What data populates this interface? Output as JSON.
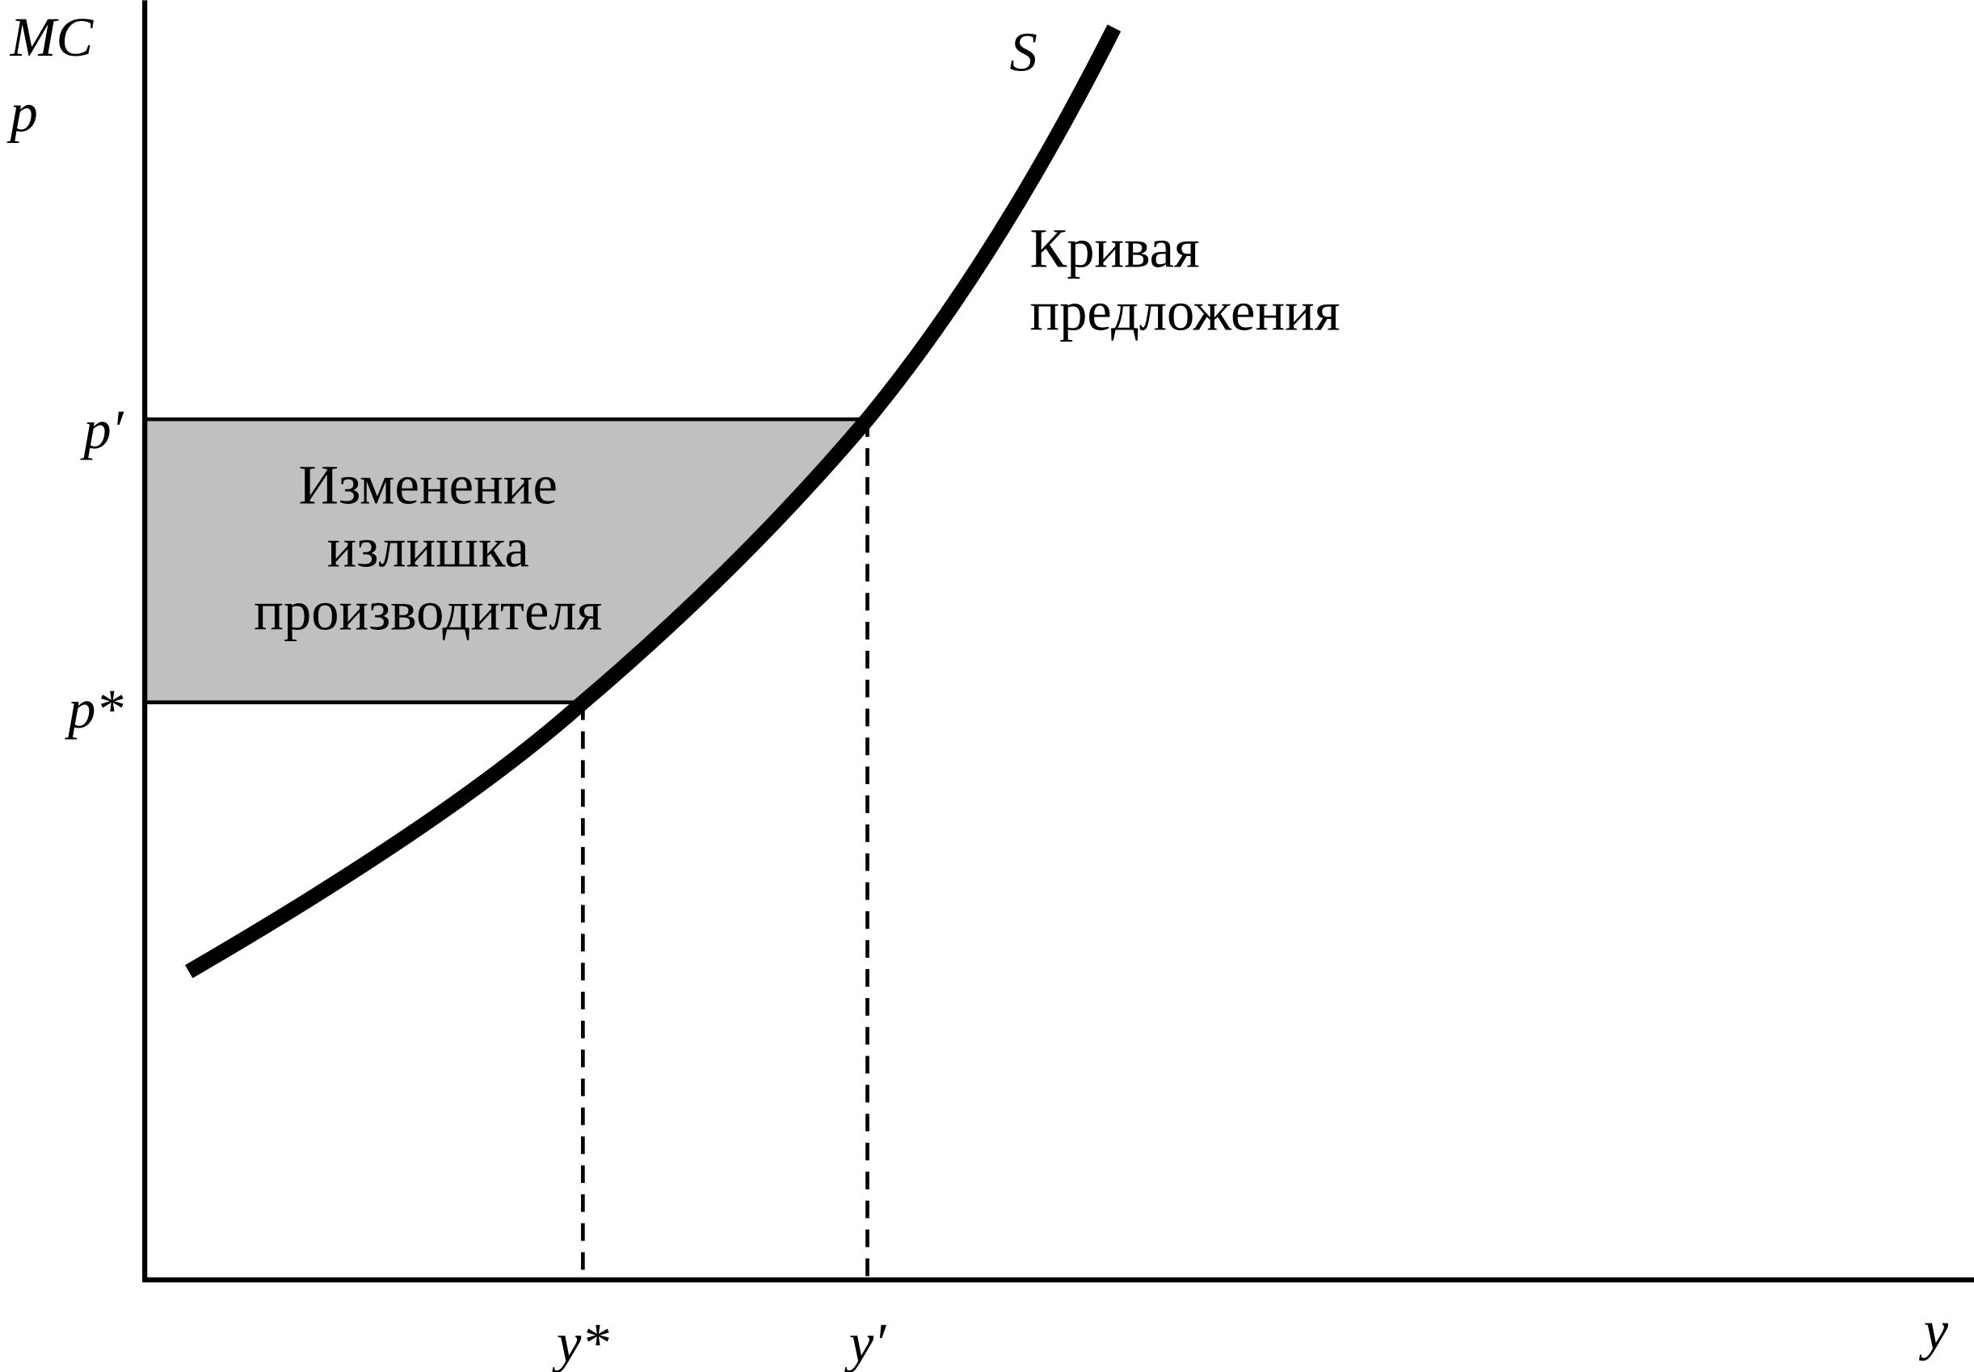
{
  "axes": {
    "y_label": [
      "MC",
      "p"
    ],
    "x_label": "y"
  },
  "price_levels": [
    "p′",
    "p*"
  ],
  "quantity_levels": [
    "y*",
    "y′"
  ],
  "curve": {
    "name": "S",
    "description": [
      "Кривая",
      "предложения"
    ]
  },
  "area": {
    "label": [
      "Изменение",
      "излишка",
      "производителя"
    ]
  }
}
